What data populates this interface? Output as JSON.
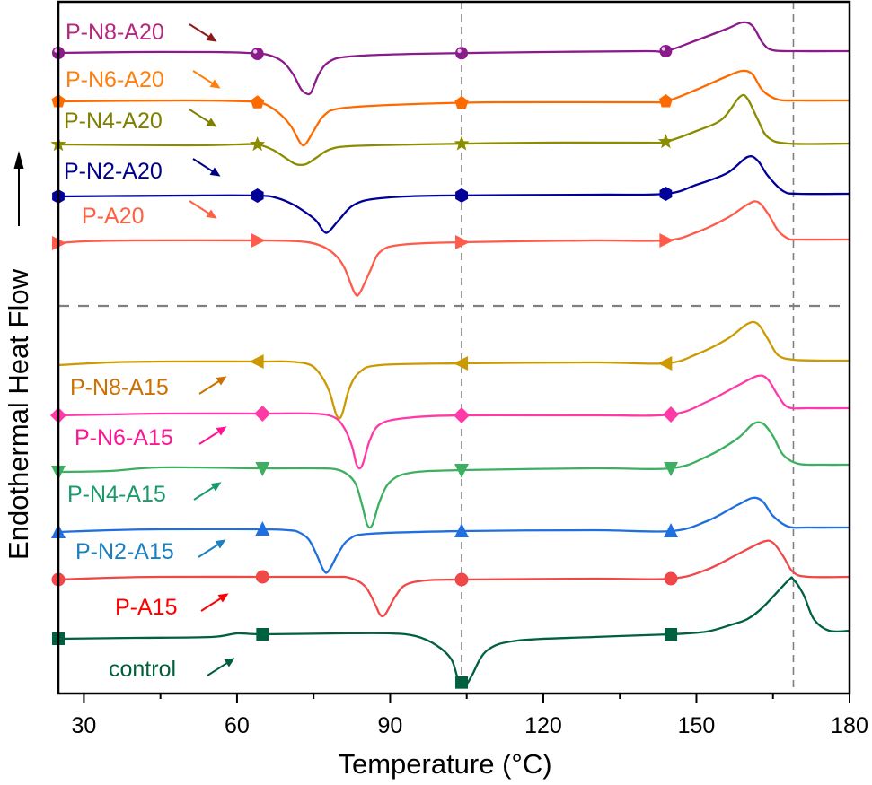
{
  "chart_data": {
    "type": "line",
    "title": "",
    "xlabel": "Temperature (°C)",
    "ylabel": "Endothermal Heat Flow",
    "ylabel_arrow": "up",
    "xlim": [
      25,
      180
    ],
    "ylim_au": [
      0,
      771
    ],
    "x_ticks": [
      30,
      60,
      90,
      120,
      150,
      180
    ],
    "x_minor_ticks": [
      45,
      75,
      105,
      135,
      165
    ],
    "y_ticks": [],
    "grid": false,
    "legend": "inline labels with arrows, left side",
    "reference_lines": {
      "vertical_temperatures": [
        104,
        169
      ],
      "horizontal_separator_au": 432,
      "style": "dashed gray"
    },
    "units_note": "Heat flow in arbitrary units (a.u.), curves vertically offset; higher value = more endothermic",
    "series": [
      {
        "name": "P-N8-A20",
        "color": "#8b1a8b",
        "label_color": "#b5287f",
        "arrow_color": "#8b1a1a",
        "marker": "sphere",
        "marker_temps": [
          25,
          64,
          104,
          144
        ],
        "points": [
          [
            25,
            714
          ],
          [
            40,
            715
          ],
          [
            55,
            715
          ],
          [
            62,
            714
          ],
          [
            66,
            712
          ],
          [
            69,
            704
          ],
          [
            71,
            690
          ],
          [
            72.5,
            674
          ],
          [
            73.5,
            669
          ],
          [
            74.5,
            670
          ],
          [
            76,
            690
          ],
          [
            78,
            704
          ],
          [
            82,
            710
          ],
          [
            95,
            713
          ],
          [
            120,
            715
          ],
          [
            140,
            716
          ],
          [
            144,
            716
          ],
          [
            150,
            728
          ],
          [
            156,
            741
          ],
          [
            159,
            748
          ],
          [
            161,
            744
          ],
          [
            163,
            725
          ],
          [
            165,
            717
          ],
          [
            170,
            716
          ],
          [
            180,
            716
          ]
        ]
      },
      {
        "name": "P-N6-A20",
        "color": "#ff6a00",
        "label_color": "#ff7f0e",
        "arrow_color": "#ff7f0e",
        "marker": "pentagon",
        "marker_temps": [
          25,
          64,
          104,
          144
        ],
        "points": [
          [
            25,
            660
          ],
          [
            50,
            661
          ],
          [
            62,
            660
          ],
          [
            65,
            658
          ],
          [
            68,
            648
          ],
          [
            70.5,
            633
          ],
          [
            72.5,
            613
          ],
          [
            73.5,
            613
          ],
          [
            75,
            627
          ],
          [
            77,
            644
          ],
          [
            80,
            652
          ],
          [
            90,
            656
          ],
          [
            110,
            659
          ],
          [
            140,
            659
          ],
          [
            144,
            660
          ],
          [
            150,
            673
          ],
          [
            156,
            688
          ],
          [
            159,
            694
          ],
          [
            161,
            690
          ],
          [
            163,
            672
          ],
          [
            166,
            662
          ],
          [
            170,
            661
          ],
          [
            180,
            661
          ]
        ]
      },
      {
        "name": "P-N4-A20",
        "color": "#8c8c00",
        "label_color": "#808000",
        "arrow_color": "#808000",
        "marker": "star",
        "marker_temps": [
          25,
          64,
          104,
          144
        ],
        "points": [
          [
            25,
            612
          ],
          [
            50,
            611
          ],
          [
            60,
            612
          ],
          [
            64,
            612
          ],
          [
            67,
            606
          ],
          [
            69.5,
            597
          ],
          [
            71.5,
            590
          ],
          [
            73.5,
            590
          ],
          [
            75.5,
            597
          ],
          [
            78,
            606
          ],
          [
            82,
            610
          ],
          [
            95,
            612
          ],
          [
            120,
            614
          ],
          [
            140,
            614
          ],
          [
            144,
            615
          ],
          [
            150,
            627
          ],
          [
            155,
            640
          ],
          [
            158.5,
            665
          ],
          [
            160,
            663
          ],
          [
            162,
            640
          ],
          [
            164,
            620
          ],
          [
            168,
            613
          ],
          [
            180,
            613
          ]
        ]
      },
      {
        "name": "P-N2-A20",
        "color": "#000099",
        "label_color": "#00008b",
        "arrow_color": "#000080",
        "marker": "hexagon",
        "marker_temps": [
          25,
          64,
          104,
          144
        ],
        "points": [
          [
            25,
            554
          ],
          [
            50,
            555
          ],
          [
            64,
            555
          ],
          [
            68,
            552
          ],
          [
            71,
            545
          ],
          [
            73.5,
            536
          ],
          [
            75.5,
            527
          ],
          [
            77,
            515
          ],
          [
            78,
            515
          ],
          [
            80,
            528
          ],
          [
            83,
            545
          ],
          [
            88,
            552
          ],
          [
            100,
            555
          ],
          [
            130,
            556
          ],
          [
            144,
            557
          ],
          [
            150,
            567
          ],
          [
            156,
            580
          ],
          [
            160,
            598
          ],
          [
            162,
            594
          ],
          [
            164,
            577
          ],
          [
            167,
            560
          ],
          [
            170,
            557
          ],
          [
            180,
            557
          ]
        ]
      },
      {
        "name": "P-A20",
        "color": "#ff5a4a",
        "label_color": "#ff6040",
        "arrow_color": "#ff6040",
        "marker": "triangle-right",
        "marker_temps": [
          25,
          64,
          104,
          144
        ],
        "points": [
          [
            25,
            502
          ],
          [
            30,
            504
          ],
          [
            40,
            505
          ],
          [
            64,
            505
          ],
          [
            72,
            504
          ],
          [
            76,
            500
          ],
          [
            79,
            490
          ],
          [
            81,
            475
          ],
          [
            83,
            447
          ],
          [
            84,
            446
          ],
          [
            86,
            470
          ],
          [
            88,
            492
          ],
          [
            92,
            500
          ],
          [
            104,
            503
          ],
          [
            130,
            505
          ],
          [
            144,
            505
          ],
          [
            150,
            514
          ],
          [
            156,
            530
          ],
          [
            160,
            545
          ],
          [
            162,
            548
          ],
          [
            164,
            535
          ],
          [
            166,
            516
          ],
          [
            168,
            507
          ],
          [
            170,
            506
          ],
          [
            180,
            506
          ]
        ]
      },
      {
        "name": "P-N8-A15",
        "color": "#cc9a00",
        "label_color": "#cc7000",
        "arrow_color": "#cc7000",
        "marker": "triangle-left",
        "marker_temps": [
          64,
          104,
          144
        ],
        "points": [
          [
            25,
            366
          ],
          [
            35,
            369
          ],
          [
            45,
            370
          ],
          [
            64,
            370
          ],
          [
            70,
            370
          ],
          [
            74,
            367
          ],
          [
            76,
            358
          ],
          [
            78,
            338
          ],
          [
            79.5,
            310
          ],
          [
            80.5,
            310
          ],
          [
            82,
            340
          ],
          [
            84,
            358
          ],
          [
            88,
            366
          ],
          [
            104,
            368
          ],
          [
            130,
            369
          ],
          [
            144,
            368
          ],
          [
            150,
            378
          ],
          [
            156,
            395
          ],
          [
            160,
            412
          ],
          [
            162,
            412
          ],
          [
            164,
            395
          ],
          [
            166,
            377
          ],
          [
            169,
            372
          ],
          [
            175,
            371
          ],
          [
            180,
            371
          ]
        ]
      },
      {
        "name": "P-N6-A15",
        "color": "#ff3aa8",
        "label_color": "#ff1493",
        "arrow_color": "#ff1493",
        "marker": "diamond",
        "marker_temps": [
          25,
          65,
          104,
          145
        ],
        "points": [
          [
            25,
            310
          ],
          [
            35,
            311
          ],
          [
            45,
            312
          ],
          [
            65,
            312
          ],
          [
            75,
            312
          ],
          [
            79,
            308
          ],
          [
            81,
            296
          ],
          [
            82.5,
            276
          ],
          [
            83.5,
            254
          ],
          [
            84.5,
            254
          ],
          [
            86,
            282
          ],
          [
            88,
            300
          ],
          [
            93,
            307
          ],
          [
            104,
            310
          ],
          [
            130,
            310
          ],
          [
            145,
            311
          ],
          [
            152,
            325
          ],
          [
            158,
            343
          ],
          [
            162,
            354
          ],
          [
            164,
            350
          ],
          [
            166,
            332
          ],
          [
            168,
            319
          ],
          [
            172,
            318
          ],
          [
            180,
            318
          ]
        ]
      },
      {
        "name": "P-N4-A15",
        "color": "#3cb060",
        "label_color": "#1a9a6a",
        "arrow_color": "#1a9a6a",
        "marker": "triangle-down",
        "marker_temps": [
          25,
          65,
          104,
          145
        ],
        "points": [
          [
            25,
            247
          ],
          [
            35,
            248
          ],
          [
            45,
            252
          ],
          [
            65,
            251
          ],
          [
            75,
            251
          ],
          [
            80,
            249
          ],
          [
            83,
            236
          ],
          [
            84.5,
            210
          ],
          [
            85.5,
            188
          ],
          [
            86.5,
            188
          ],
          [
            88,
            215
          ],
          [
            90,
            236
          ],
          [
            94,
            246
          ],
          [
            104,
            249
          ],
          [
            130,
            251
          ],
          [
            145,
            251
          ],
          [
            152,
            264
          ],
          [
            158,
            284
          ],
          [
            161,
            300
          ],
          [
            163,
            301
          ],
          [
            165,
            287
          ],
          [
            167,
            266
          ],
          [
            170,
            256
          ],
          [
            175,
            255
          ],
          [
            180,
            255
          ]
        ]
      },
      {
        "name": "P-N2-A15",
        "color": "#1f6fe0",
        "label_color": "#1a80c0",
        "arrow_color": "#1a80c0",
        "marker": "triangle-up",
        "marker_temps": [
          25,
          65,
          104,
          145
        ],
        "points": [
          [
            25,
            180
          ],
          [
            35,
            182
          ],
          [
            45,
            183
          ],
          [
            65,
            183
          ],
          [
            70,
            182
          ],
          [
            72,
            180
          ],
          [
            74,
            172
          ],
          [
            75.5,
            156
          ],
          [
            77,
            137
          ],
          [
            78,
            137
          ],
          [
            80,
            158
          ],
          [
            82,
            172
          ],
          [
            86,
            178
          ],
          [
            104,
            181
          ],
          [
            130,
            182
          ],
          [
            145,
            181
          ],
          [
            152,
            192
          ],
          [
            158,
            210
          ],
          [
            161,
            218
          ],
          [
            163,
            214
          ],
          [
            165,
            198
          ],
          [
            168,
            186
          ],
          [
            172,
            185
          ],
          [
            180,
            185
          ]
        ]
      },
      {
        "name": "P-A15",
        "color": "#f04848",
        "label_color": "#ff0000",
        "arrow_color": "#ff0000",
        "marker": "circle",
        "marker_temps": [
          25,
          65,
          104,
          145
        ],
        "points": [
          [
            25,
            127
          ],
          [
            35,
            129
          ],
          [
            45,
            130
          ],
          [
            65,
            130
          ],
          [
            78,
            130
          ],
          [
            82,
            129
          ],
          [
            85,
            120
          ],
          [
            87,
            100
          ],
          [
            88,
            88
          ],
          [
            89,
            88
          ],
          [
            91,
            108
          ],
          [
            93,
            121
          ],
          [
            97,
            126
          ],
          [
            104,
            127
          ],
          [
            130,
            128
          ],
          [
            145,
            128
          ],
          [
            152,
            138
          ],
          [
            158,
            155
          ],
          [
            163,
            169
          ],
          [
            165,
            168
          ],
          [
            167,
            153
          ],
          [
            169,
            135
          ],
          [
            172,
            130
          ],
          [
            180,
            130
          ]
        ]
      },
      {
        "name": "control",
        "color": "#006040",
        "label_color": "#005e3a",
        "arrow_color": "#005e3a",
        "marker": "square",
        "marker_temps": [
          25,
          65,
          104,
          145
        ],
        "points": [
          [
            25,
            61
          ],
          [
            40,
            62
          ],
          [
            55,
            63
          ],
          [
            60,
            67
          ],
          [
            65,
            66
          ],
          [
            80,
            67
          ],
          [
            90,
            67
          ],
          [
            95,
            64
          ],
          [
            99,
            54
          ],
          [
            102,
            38
          ],
          [
            103.5,
            13
          ],
          [
            105,
            11
          ],
          [
            106,
            20
          ],
          [
            109,
            48
          ],
          [
            115,
            59
          ],
          [
            130,
            63
          ],
          [
            145,
            66
          ],
          [
            152,
            69
          ],
          [
            157,
            77
          ],
          [
            160,
            83
          ],
          [
            163,
            96
          ],
          [
            168,
            126
          ],
          [
            169,
            127
          ],
          [
            171,
            110
          ],
          [
            173,
            83
          ],
          [
            176,
            70
          ],
          [
            180,
            70
          ]
        ]
      }
    ]
  }
}
